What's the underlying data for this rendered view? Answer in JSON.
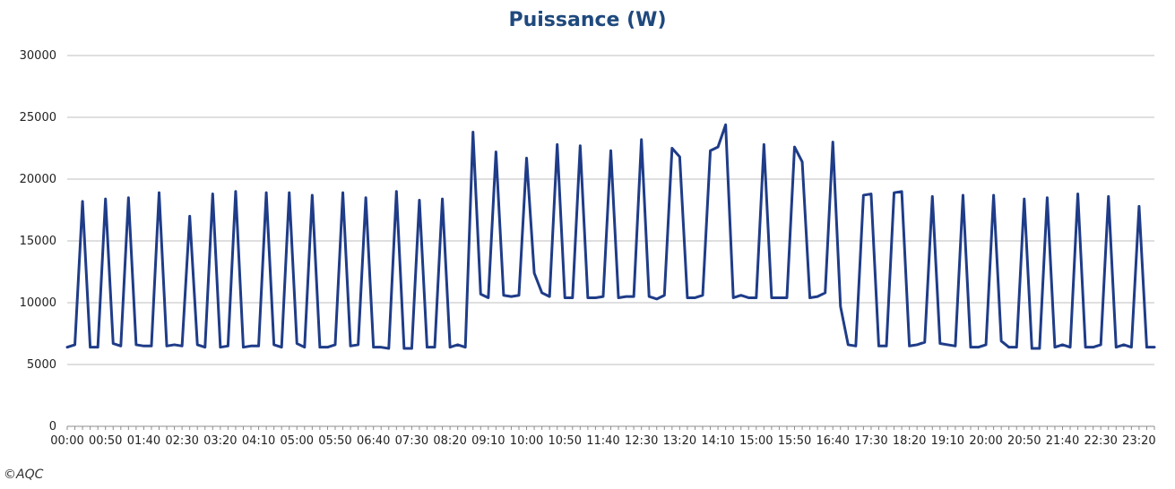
{
  "credit": "©AQC",
  "chart_data": {
    "type": "line",
    "title": "Puissance (W)",
    "xlabel": "",
    "ylabel": "",
    "ylim": [
      0,
      30000
    ],
    "yticks": [
      0,
      5000,
      10000,
      15000,
      20000,
      25000,
      30000
    ],
    "xtick_labels": [
      "00:00",
      "00:50",
      "01:40",
      "02:30",
      "03:20",
      "04:10",
      "05:00",
      "05:50",
      "06:40",
      "07:30",
      "08:20",
      "09:10",
      "10:00",
      "10:50",
      "11:40",
      "12:30",
      "13:20",
      "14:10",
      "15:00",
      "15:50",
      "16:40",
      "17:30",
      "18:20",
      "19:10",
      "20:00",
      "20:50",
      "21:40",
      "22:30",
      "23:20"
    ],
    "interval_minutes": 10,
    "grid": true,
    "legend": "none",
    "line_color": "#1f3c88",
    "series": [
      {
        "values": [
          6400,
          6600,
          18200,
          6400,
          6400,
          18400,
          6700,
          6500,
          18500,
          6600,
          6500,
          6500,
          18900,
          6500,
          6600,
          6500,
          17000,
          6600,
          6400,
          18800,
          6400,
          6500,
          19000,
          6400,
          6500,
          6500,
          18900,
          6600,
          6400,
          18900,
          6700,
          6400,
          18700,
          6400,
          6400,
          6600,
          18900,
          6500,
          6600,
          18500,
          6400,
          6400,
          6300,
          19000,
          6300,
          6300,
          18300,
          6400,
          6400,
          18400,
          6400,
          6600,
          6400,
          23800,
          10700,
          10400,
          22200,
          10600,
          10500,
          10600,
          21700,
          12400,
          10800,
          10500,
          22800,
          10400,
          10400,
          22700,
          10400,
          10400,
          10500,
          22300,
          10400,
          10500,
          10500,
          23200,
          10500,
          10300,
          10600,
          22500,
          21800,
          10400,
          10400,
          10600,
          22300,
          22600,
          24400,
          10400,
          10600,
          10400,
          10400,
          22800,
          10400,
          10400,
          10400,
          22600,
          21400,
          10400,
          10500,
          10800,
          23000,
          9700,
          6600,
          6500,
          18700,
          18800,
          6500,
          6500,
          18900,
          19000,
          6500,
          6600,
          6800,
          18600,
          6700,
          6600,
          6500,
          18700,
          6400,
          6400,
          6600,
          18700,
          6900,
          6400,
          6400,
          18400,
          6300,
          6300,
          18500,
          6400,
          6600,
          6400,
          18800,
          6400,
          6400,
          6600,
          18600,
          6400,
          6600,
          6400,
          17800,
          6400,
          6400
        ]
      }
    ]
  }
}
